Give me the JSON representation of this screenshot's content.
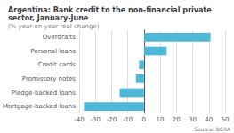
{
  "chart_data": {
    "type": "bar",
    "orientation": "horizontal",
    "title": "Argentina: Bank credit to the non-financial private sector, January-June",
    "subtitle": "(% year-on-year real change)",
    "annotations": [
      "Source: BCRA"
    ],
    "categories": [
      "Overdrafts",
      "Personal loans",
      "Credit cards",
      "Promissory notes",
      "Pledge-backed loans",
      "Mortgage-backed loans"
    ],
    "values": [
      41,
      14,
      -3,
      -5,
      -15,
      -37
    ],
    "color": "#4db8d8",
    "xlim": [
      -40,
      50
    ],
    "xticks": [
      -40,
      -30,
      -20,
      -10,
      0,
      10,
      20,
      30,
      40,
      50
    ],
    "grid": true
  }
}
